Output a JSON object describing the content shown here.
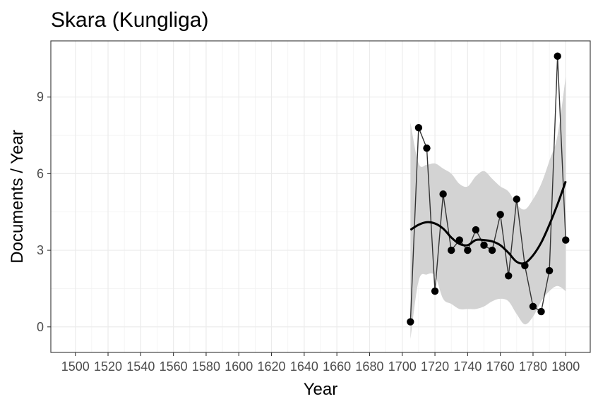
{
  "chart_data": {
    "type": "line",
    "title": "Skara (Kungliga)",
    "xlabel": "Year",
    "ylabel": "Documents / Year",
    "xlim": [
      1485,
      1815
    ],
    "ylim": [
      -1,
      11.2
    ],
    "x_ticks": [
      1500,
      1520,
      1540,
      1560,
      1580,
      1600,
      1620,
      1640,
      1660,
      1680,
      1700,
      1720,
      1740,
      1760,
      1780,
      1800
    ],
    "x_tick_labels": [
      "1500",
      "1520",
      "1540",
      "1560",
      "1580",
      "1600",
      "1620",
      "1640",
      "1660",
      "1680",
      "1700",
      "1720",
      "1740",
      "1760",
      "1780",
      "1800"
    ],
    "y_ticks": [
      0,
      3,
      6,
      9
    ],
    "y_tick_labels": [
      "0",
      "3",
      "6",
      "9"
    ],
    "grid": true,
    "legend": "none",
    "series": [
      {
        "kind": "observed",
        "color": "#000000",
        "line_color": "#333333",
        "points": [
          [
            1705,
            0.2
          ],
          [
            1710,
            7.8
          ],
          [
            1715,
            7.0
          ],
          [
            1720,
            1.4
          ],
          [
            1725,
            5.2
          ],
          [
            1730,
            3.0
          ],
          [
            1735,
            3.4
          ],
          [
            1740,
            3.0
          ],
          [
            1745,
            3.8
          ],
          [
            1750,
            3.2
          ],
          [
            1755,
            3.0
          ],
          [
            1760,
            4.4
          ],
          [
            1765,
            2.0
          ],
          [
            1770,
            5.0
          ],
          [
            1775,
            2.4
          ],
          [
            1780,
            0.8
          ],
          [
            1785,
            0.6
          ],
          [
            1790,
            2.2
          ],
          [
            1795,
            10.6
          ],
          [
            1800,
            3.4
          ]
        ]
      },
      {
        "kind": "smooth",
        "color": "#000000",
        "band_color": "#d3d3d3",
        "points": [
          [
            1705,
            3.8
          ],
          [
            1710,
            4.0
          ],
          [
            1715,
            4.1
          ],
          [
            1720,
            4.05
          ],
          [
            1725,
            3.85
          ],
          [
            1730,
            3.5
          ],
          [
            1735,
            3.25
          ],
          [
            1740,
            3.2
          ],
          [
            1745,
            3.4
          ],
          [
            1750,
            3.4
          ],
          [
            1755,
            3.35
          ],
          [
            1760,
            3.2
          ],
          [
            1765,
            2.9
          ],
          [
            1770,
            2.55
          ],
          [
            1775,
            2.5
          ],
          [
            1780,
            2.8
          ],
          [
            1785,
            3.3
          ],
          [
            1790,
            4.0
          ],
          [
            1795,
            4.8
          ],
          [
            1800,
            5.7
          ]
        ],
        "band_lower": [
          [
            1705,
            -0.5
          ],
          [
            1710,
            1.8
          ],
          [
            1715,
            2.05
          ],
          [
            1720,
            2.0
          ],
          [
            1725,
            1.1
          ],
          [
            1730,
            0.9
          ],
          [
            1735,
            0.7
          ],
          [
            1740,
            0.7
          ],
          [
            1745,
            0.7
          ],
          [
            1750,
            0.8
          ],
          [
            1755,
            1.0
          ],
          [
            1760,
            1.1
          ],
          [
            1765,
            1.0
          ],
          [
            1770,
            0.5
          ],
          [
            1775,
            0.1
          ],
          [
            1780,
            0.4
          ],
          [
            1785,
            1.0
          ],
          [
            1790,
            1.4
          ],
          [
            1795,
            1.6
          ],
          [
            1800,
            1.4
          ]
        ],
        "band_upper": [
          [
            1705,
            8.0
          ],
          [
            1710,
            6.4
          ],
          [
            1715,
            6.35
          ],
          [
            1720,
            6.4
          ],
          [
            1725,
            6.2
          ],
          [
            1730,
            6.0
          ],
          [
            1735,
            5.6
          ],
          [
            1740,
            5.5
          ],
          [
            1745,
            5.9
          ],
          [
            1750,
            6.1
          ],
          [
            1755,
            5.8
          ],
          [
            1760,
            5.5
          ],
          [
            1765,
            5.3
          ],
          [
            1770,
            4.8
          ],
          [
            1775,
            4.6
          ],
          [
            1780,
            5.0
          ],
          [
            1785,
            5.6
          ],
          [
            1790,
            6.5
          ],
          [
            1795,
            7.5
          ],
          [
            1800,
            9.8
          ]
        ]
      }
    ]
  }
}
